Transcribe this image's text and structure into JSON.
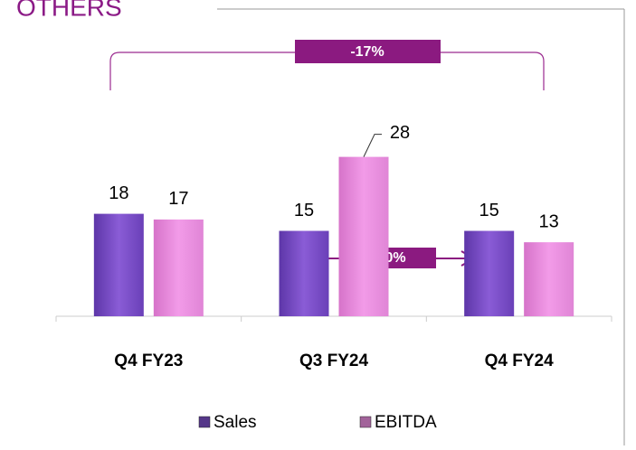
{
  "chart_data": {
    "type": "bar",
    "title": "OTHERS",
    "categories": [
      "Q4 FY23",
      "Q3 FY24",
      "Q4 FY24"
    ],
    "series": [
      {
        "name": "Sales",
        "color": "#7a4fc4",
        "values": [
          18,
          15,
          15
        ]
      },
      {
        "name": "EBITDA",
        "color": "#e88ddc",
        "values": [
          17,
          28,
          13
        ]
      }
    ],
    "ylim": [
      0,
      30
    ],
    "annotations": [
      "-17%",
      "0%"
    ]
  }
}
